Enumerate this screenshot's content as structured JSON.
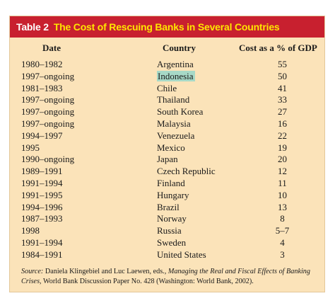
{
  "table": {
    "title_label": "Table 2",
    "title": "The Cost of Rescuing Banks in Several Countries",
    "headers": {
      "date": "Date",
      "country": "Country",
      "cost": "Cost as a % of GDP"
    },
    "rows": [
      {
        "date": "1980–1982",
        "country": "Argentina",
        "cost": "55"
      },
      {
        "date": "1997–ongoing",
        "country": "Indonesia",
        "cost": "50",
        "highlighted": true
      },
      {
        "date": "1981–1983",
        "country": "Chile",
        "cost": "41"
      },
      {
        "date": "1997–ongoing",
        "country": "Thailand",
        "cost": "33"
      },
      {
        "date": "1997–ongoing",
        "country": "South Korea",
        "cost": "27"
      },
      {
        "date": "1997–ongoing",
        "country": "Malaysia",
        "cost": "16"
      },
      {
        "date": "1994–1997",
        "country": "Venezuela",
        "cost": "22"
      },
      {
        "date": "1995",
        "country": "Mexico",
        "cost": "19"
      },
      {
        "date": "1990–ongoing",
        "country": "Japan",
        "cost": "20"
      },
      {
        "date": "1989–1991",
        "country": "Czech Republic",
        "cost": "12"
      },
      {
        "date": "1991–1994",
        "country": "Finland",
        "cost": "11"
      },
      {
        "date": "1991–1995",
        "country": "Hungary",
        "cost": "10"
      },
      {
        "date": "1994–1996",
        "country": "Brazil",
        "cost": "13"
      },
      {
        "date": "1987–1993",
        "country": "Norway",
        "cost": "8"
      },
      {
        "date": "1998",
        "country": "Russia",
        "cost": "5–7"
      },
      {
        "date": "1991–1994",
        "country": "Sweden",
        "cost": "4"
      },
      {
        "date": "1984–1991",
        "country": "United States",
        "cost": "3"
      }
    ],
    "source": {
      "label": "Source:",
      "editors": "Daniela Klingebiel and Luc Laewen, eds.,",
      "book": "Managing the Real and Fiscal Effects of Banking Crises,",
      "rest": "World Bank Discussion Paper No. 428 (Washington: World Bank, 2002)."
    }
  },
  "colors": {
    "title_bar": "#c8202f",
    "title_text": "#ffe600",
    "background": "#fbe3b9",
    "highlight": "#a7d9c7"
  }
}
